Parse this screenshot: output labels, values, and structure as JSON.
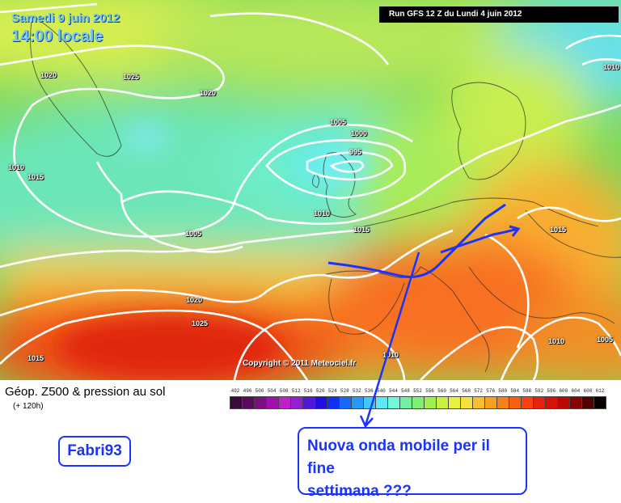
{
  "map": {
    "date": "Samedi 9 juin 2012",
    "time": "14:00 locale",
    "run": "Run GFS 12 Z du Lundi 4 juin 2012",
    "copyright": "Copyright © 2011 Meteociel.fr",
    "isobar_labels": [
      "1020",
      "1025",
      "1020",
      "1005",
      "1000",
      "995",
      "1010",
      "1015",
      "1010",
      "1005",
      "1015",
      "1020",
      "1025",
      "1015",
      "1010",
      "1015",
      "1010",
      "1005",
      "1010"
    ]
  },
  "legend": {
    "title": "Géop. Z500 & pression au sol",
    "subtitle": "(+ 120h)",
    "scale_values": [
      "492",
      "496",
      "500",
      "504",
      "508",
      "512",
      "516",
      "520",
      "524",
      "528",
      "532",
      "536",
      "540",
      "544",
      "548",
      "552",
      "556",
      "560",
      "564",
      "568",
      "572",
      "576",
      "580",
      "584",
      "588",
      "592",
      "596",
      "600",
      "604",
      "608",
      "612"
    ],
    "scale_colors": [
      "#3a0a3a",
      "#5a0a5a",
      "#7a1080",
      "#a010b0",
      "#c020c8",
      "#9020d0",
      "#5018d8",
      "#2010e0",
      "#1030f0",
      "#1868f8",
      "#2898f8",
      "#40c8f8",
      "#60e8f8",
      "#70f8d8",
      "#70f0a0",
      "#80f070",
      "#a0f050",
      "#c8f040",
      "#e8f040",
      "#f8e040",
      "#f8c030",
      "#f8a020",
      "#f88018",
      "#f86010",
      "#f84010",
      "#e82010",
      "#d81008",
      "#b80808",
      "#880404",
      "#500202",
      "#0a0000"
    ]
  },
  "annotation": {
    "username": "Fabri93",
    "note_line1": "Nuova onda mobile per il fine",
    "note_line2": "settimana ???",
    "accent_color": "#1a33ff"
  }
}
